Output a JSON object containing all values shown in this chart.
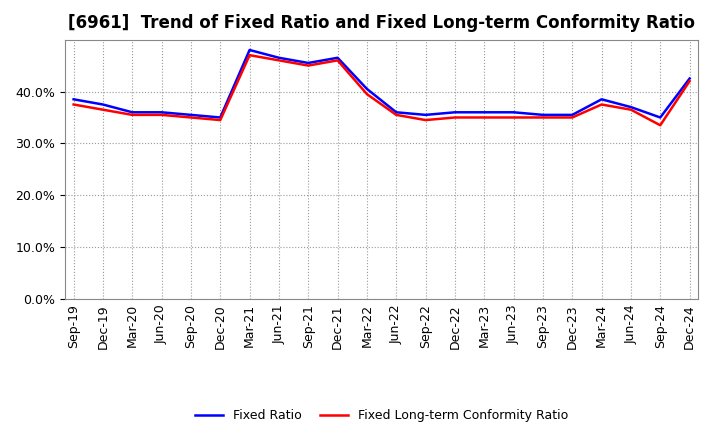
{
  "title": "[6961]  Trend of Fixed Ratio and Fixed Long-term Conformity Ratio",
  "x_labels": [
    "Sep-19",
    "Dec-19",
    "Mar-20",
    "Jun-20",
    "Sep-20",
    "Dec-20",
    "Mar-21",
    "Jun-21",
    "Sep-21",
    "Dec-21",
    "Mar-22",
    "Jun-22",
    "Sep-22",
    "Dec-22",
    "Mar-23",
    "Jun-23",
    "Sep-23",
    "Dec-23",
    "Mar-24",
    "Jun-24",
    "Sep-24",
    "Dec-24"
  ],
  "fixed_ratio": [
    38.5,
    37.5,
    36.0,
    36.0,
    35.5,
    35.0,
    48.0,
    46.5,
    45.5,
    46.5,
    40.5,
    36.0,
    35.5,
    36.0,
    36.0,
    36.0,
    35.5,
    35.5,
    38.5,
    37.0,
    35.0,
    42.5
  ],
  "fixed_lt_ratio": [
    37.5,
    36.5,
    35.5,
    35.5,
    35.0,
    34.5,
    47.0,
    46.0,
    45.0,
    46.0,
    39.5,
    35.5,
    34.5,
    35.0,
    35.0,
    35.0,
    35.0,
    35.0,
    37.5,
    36.5,
    33.5,
    42.0
  ],
  "fixed_ratio_color": "#0000FF",
  "fixed_lt_ratio_color": "#FF0000",
  "ylim": [
    0,
    50
  ],
  "yticks": [
    0,
    10,
    20,
    30,
    40
  ],
  "background_color": "#ffffff",
  "plot_bg_color": "#ffffff",
  "grid_color": "#999999",
  "title_fontsize": 12,
  "tick_fontsize": 9,
  "legend_labels": [
    "Fixed Ratio",
    "Fixed Long-term Conformity Ratio"
  ]
}
